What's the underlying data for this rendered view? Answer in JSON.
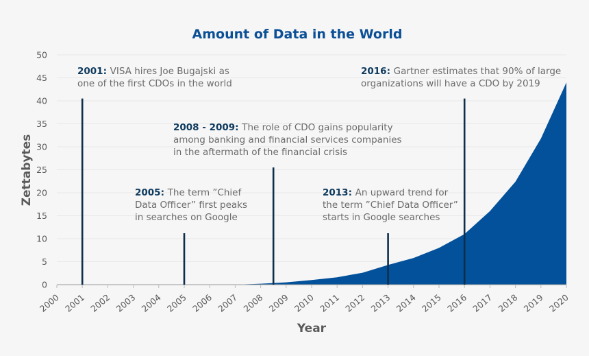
{
  "chart_data": {
    "type": "area",
    "title": "Amount of Data in the World",
    "xlabel": "Year",
    "ylabel": "Zettabytes",
    "xlim": [
      2000,
      2020
    ],
    "ylim": [
      0,
      50
    ],
    "yticks": [
      0,
      5,
      10,
      15,
      20,
      25,
      30,
      35,
      40,
      45,
      50
    ],
    "xticks": [
      2000,
      2001,
      2002,
      2003,
      2004,
      2005,
      2006,
      2007,
      2008,
      2009,
      2010,
      2011,
      2012,
      2013,
      2014,
      2015,
      2016,
      2017,
      2018,
      2019,
      2020
    ],
    "grid": true,
    "color": "#02519a",
    "series": [
      {
        "x": [
          2000,
          2001,
          2002,
          2003,
          2004,
          2005,
          2006,
          2007,
          2008,
          2009,
          2010,
          2011,
          2012,
          2013,
          2014,
          2015,
          2016,
          2017,
          2018,
          2019,
          2020
        ],
        "y": [
          0,
          0,
          0,
          0,
          0,
          0,
          0,
          0,
          0.2,
          0.5,
          1.0,
          1.6,
          2.6,
          4.3,
          5.8,
          8.0,
          11.0,
          16.0,
          22.4,
          31.8,
          44.0
        ]
      }
    ],
    "annotations": [
      {
        "x": 2001,
        "line_top": 40.5,
        "bold": "2001:",
        "lines": [
          "VISA hires Joe Bugajski as",
          "one of the first CDOs in the world"
        ]
      },
      {
        "x": 2005,
        "line_top": 11.2,
        "bold": "2005:",
        "lines": [
          "The term ”Chief",
          "Data Officer” first peaks",
          "in searches on Google"
        ]
      },
      {
        "x": 2008.5,
        "line_top": 25.5,
        "bold": "2008 - 2009:",
        "lines": [
          "The role of CDO gains popularity",
          "among banking and financial services companies",
          "in the aftermath of the financial crisis"
        ]
      },
      {
        "x": 2013,
        "line_top": 11.2,
        "bold": "2013:",
        "lines": [
          "An upward trend for",
          "the term ”Chief Data Officer”",
          "starts in Google searches"
        ]
      },
      {
        "x": 2016,
        "line_top": 40.5,
        "bold": "2016:",
        "lines": [
          "Gartner estimates that 90% of large",
          "organizations will have a CDO by 2019"
        ]
      }
    ]
  }
}
